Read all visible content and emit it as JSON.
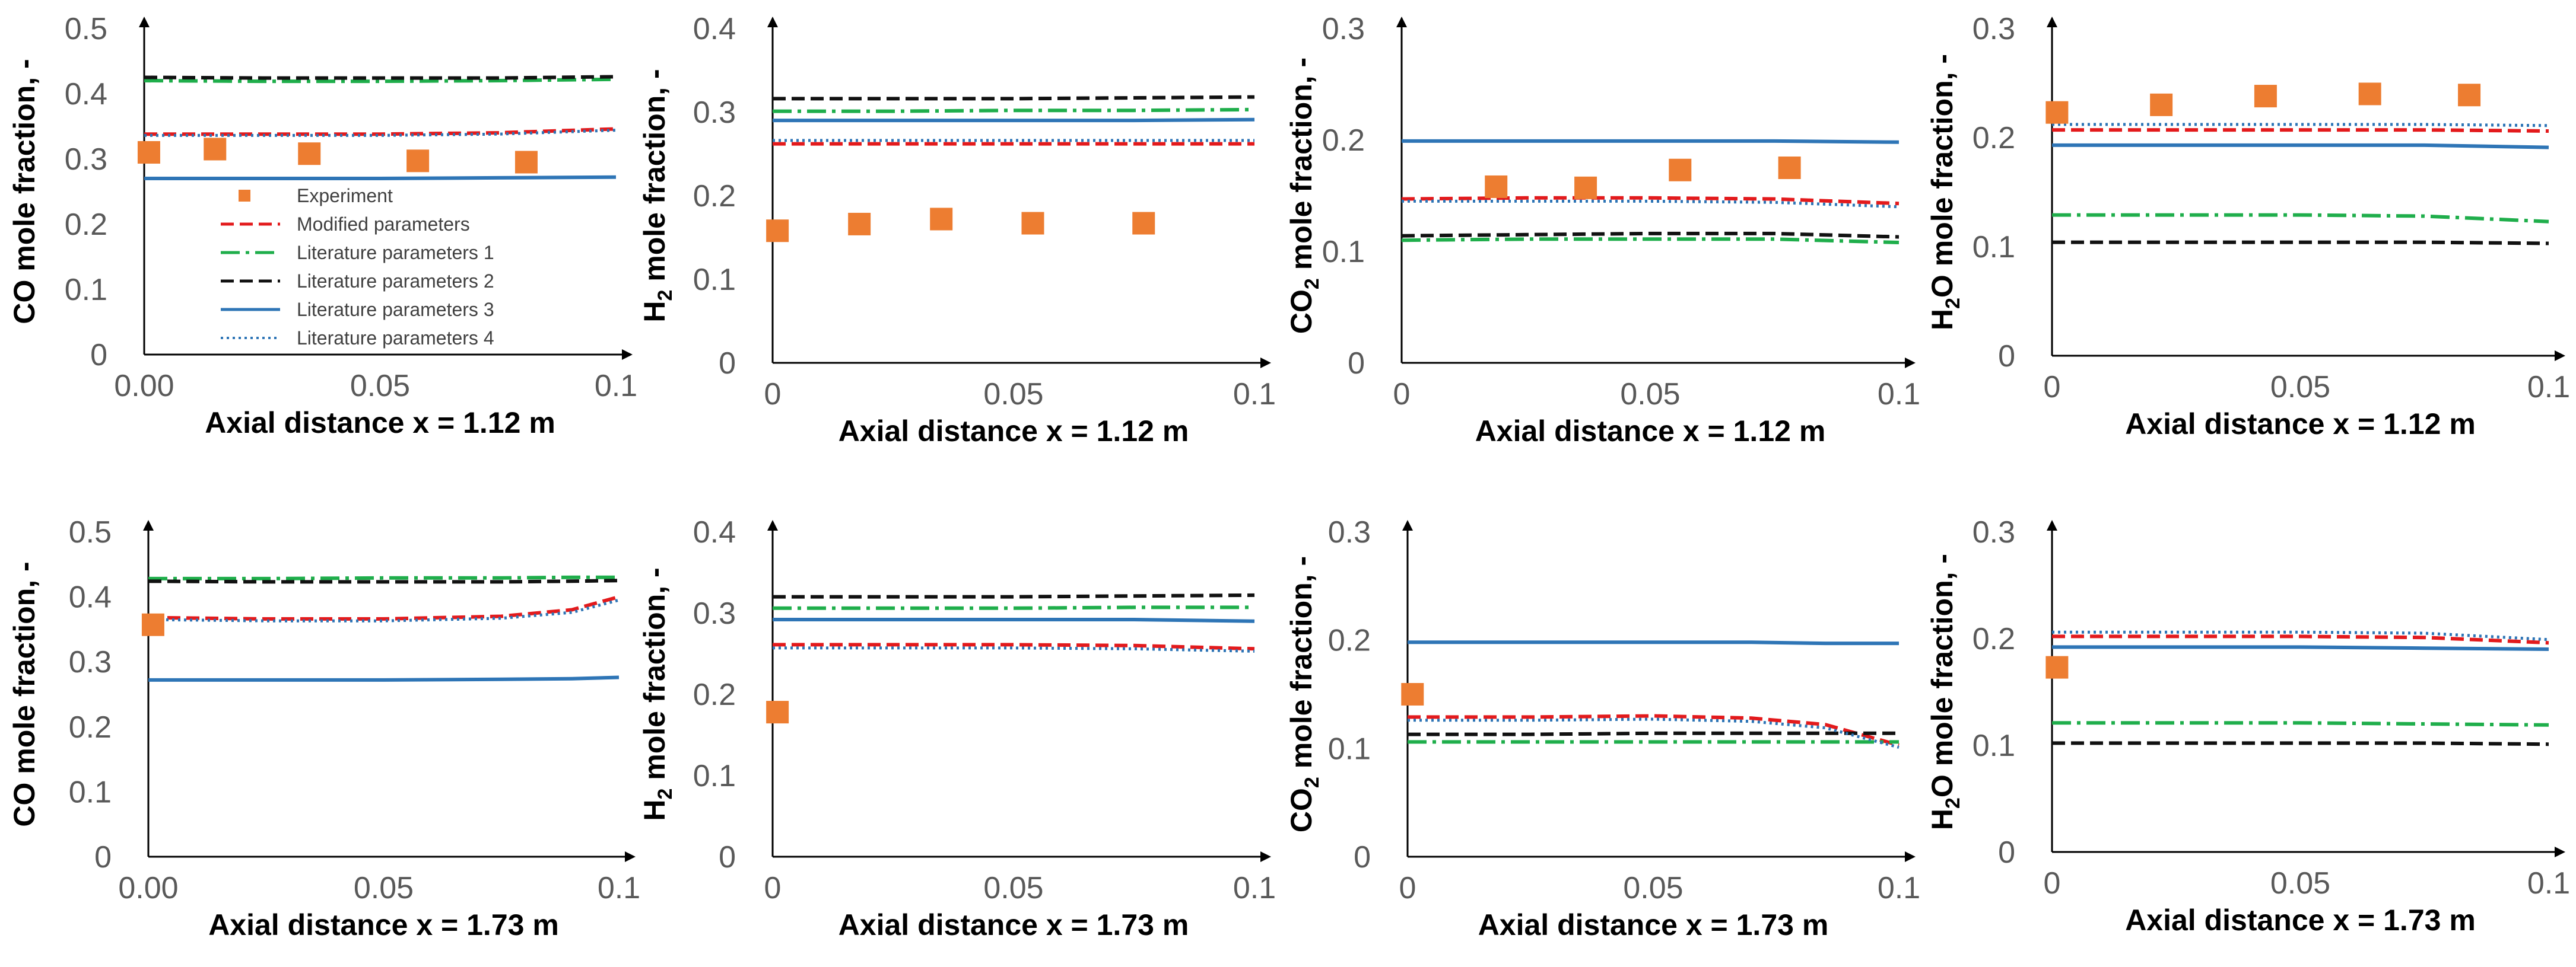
{
  "figure": {
    "description_type": "8-panel line chart grid",
    "legend": {
      "entries": [
        {
          "name": "Experiment",
          "style": "marker",
          "color": "#ED7D31"
        },
        {
          "name": "Modified parameters",
          "style": "dashed",
          "color": "#E31A1C"
        },
        {
          "name": "Literature parameters 1",
          "style": "dashdot",
          "color": "#1FAE4B"
        },
        {
          "name": "Literature parameters 2",
          "style": "dashed",
          "color": "#111111"
        },
        {
          "name": "Literature parameters 3",
          "style": "solid",
          "color": "#2E75B6"
        },
        {
          "name": "Literature parameters 4",
          "style": "dotted",
          "color": "#2E75B6"
        }
      ]
    }
  },
  "chart_data": [
    {
      "type": "line",
      "title": "",
      "xlabel": "Axial distance x = 1.12 m",
      "ylabel_main": "CO",
      "ylabel_sub": "",
      "ylabel_rest": " mole fraction, -",
      "xlim": [
        0,
        0.1
      ],
      "ylim": [
        0,
        0.5
      ],
      "xticks": [
        "0.00",
        "0.05",
        "0.1"
      ],
      "yticks": [
        "0",
        "0.1",
        "0.2",
        "0.3",
        "0.4",
        "0.5"
      ],
      "x": [
        0,
        0.025,
        0.05,
        0.075,
        0.1
      ],
      "series": [
        {
          "name": "Modified parameters",
          "values": [
            0.338,
            0.338,
            0.338,
            0.34,
            0.346
          ]
        },
        {
          "name": "Literature parameters 1",
          "values": [
            0.42,
            0.419,
            0.419,
            0.42,
            0.422
          ]
        },
        {
          "name": "Literature parameters 2",
          "values": [
            0.425,
            0.424,
            0.424,
            0.424,
            0.426
          ]
        },
        {
          "name": "Literature parameters 3",
          "values": [
            0.27,
            0.27,
            0.27,
            0.271,
            0.272
          ]
        },
        {
          "name": "Literature parameters 4",
          "values": [
            0.336,
            0.336,
            0.336,
            0.338,
            0.344
          ]
        }
      ],
      "experiment": {
        "x": [
          0.001,
          0.015,
          0.035,
          0.058,
          0.081
        ],
        "y": [
          0.31,
          0.315,
          0.308,
          0.297,
          0.295
        ]
      }
    },
    {
      "type": "line",
      "title": "",
      "xlabel": "Axial distance x = 1.12 m",
      "ylabel_main": "H",
      "ylabel_sub": "2",
      "ylabel_rest": " mole fraction, -",
      "xlim": [
        0,
        0.1
      ],
      "ylim": [
        0,
        0.4
      ],
      "xticks": [
        "0",
        "0.05",
        "0.1"
      ],
      "yticks": [
        "0",
        "0.1",
        "0.2",
        "0.3",
        "0.4"
      ],
      "x": [
        0,
        0.025,
        0.05,
        0.075,
        0.1
      ],
      "series": [
        {
          "name": "Modified parameters",
          "values": [
            0.262,
            0.262,
            0.262,
            0.262,
            0.262
          ]
        },
        {
          "name": "Literature parameters 1",
          "values": [
            0.301,
            0.301,
            0.302,
            0.302,
            0.303
          ]
        },
        {
          "name": "Literature parameters 2",
          "values": [
            0.316,
            0.316,
            0.316,
            0.317,
            0.318
          ]
        },
        {
          "name": "Literature parameters 3",
          "values": [
            0.29,
            0.29,
            0.29,
            0.29,
            0.291
          ]
        },
        {
          "name": "Literature parameters 4",
          "values": [
            0.266,
            0.266,
            0.266,
            0.266,
            0.266
          ]
        }
      ],
      "experiment": {
        "x": [
          0.001,
          0.018,
          0.035,
          0.054,
          0.077
        ],
        "y": [
          0.158,
          0.166,
          0.172,
          0.167,
          0.167
        ]
      }
    },
    {
      "type": "line",
      "title": "",
      "xlabel": "Axial distance x = 1.12 m",
      "ylabel_main": "CO",
      "ylabel_sub": "2",
      "ylabel_rest": " mole fraction, -",
      "xlim": [
        0,
        0.1
      ],
      "ylim": [
        0,
        0.3
      ],
      "xticks": [
        "0",
        "0.05",
        "0.1"
      ],
      "yticks": [
        "0",
        "0.1",
        "0.2",
        "0.3"
      ],
      "x": [
        0,
        0.025,
        0.05,
        0.075,
        0.1
      ],
      "series": [
        {
          "name": "Modified parameters",
          "values": [
            0.147,
            0.148,
            0.148,
            0.147,
            0.143
          ]
        },
        {
          "name": "Literature parameters 1",
          "values": [
            0.11,
            0.111,
            0.111,
            0.111,
            0.108
          ]
        },
        {
          "name": "Literature parameters 2",
          "values": [
            0.114,
            0.115,
            0.116,
            0.116,
            0.113
          ]
        },
        {
          "name": "Literature parameters 3",
          "values": [
            0.199,
            0.199,
            0.199,
            0.199,
            0.198
          ]
        },
        {
          "name": "Literature parameters 4",
          "values": [
            0.145,
            0.145,
            0.145,
            0.144,
            0.14
          ]
        }
      ],
      "experiment": {
        "x": [
          0.019,
          0.037,
          0.056,
          0.078
        ],
        "y": [
          0.158,
          0.157,
          0.173,
          0.175
        ]
      }
    },
    {
      "type": "line",
      "title": "",
      "xlabel": "Axial distance x = 1.12 m",
      "ylabel_main": "H",
      "ylabel_sub": "2",
      "ylabel_rest": "O mole fraction, -",
      "xlim": [
        0,
        0.1
      ],
      "ylim": [
        0,
        0.3
      ],
      "xticks": [
        "0",
        "0.05",
        "0.1"
      ],
      "yticks": [
        "0",
        "0.1",
        "0.2",
        "0.3"
      ],
      "x": [
        0,
        0.025,
        0.05,
        0.075,
        0.1
      ],
      "series": [
        {
          "name": "Modified parameters",
          "values": [
            0.207,
            0.207,
            0.207,
            0.207,
            0.206
          ]
        },
        {
          "name": "Literature parameters 1",
          "values": [
            0.129,
            0.129,
            0.129,
            0.128,
            0.123
          ]
        },
        {
          "name": "Literature parameters 2",
          "values": [
            0.104,
            0.104,
            0.104,
            0.104,
            0.103
          ]
        },
        {
          "name": "Literature parameters 3",
          "values": [
            0.193,
            0.193,
            0.193,
            0.193,
            0.191
          ]
        },
        {
          "name": "Literature parameters 4",
          "values": [
            0.212,
            0.212,
            0.212,
            0.212,
            0.211
          ]
        }
      ],
      "experiment": {
        "x": [
          0.001,
          0.022,
          0.043,
          0.064,
          0.084
        ],
        "y": [
          0.223,
          0.23,
          0.238,
          0.24,
          0.239
        ]
      }
    },
    {
      "type": "line",
      "title": "",
      "xlabel": "Axial distance x = 1.73 m",
      "ylabel_main": "CO",
      "ylabel_sub": "",
      "ylabel_rest": " mole fraction, -",
      "xlim": [
        0,
        0.1
      ],
      "ylim": [
        0,
        0.5
      ],
      "xticks": [
        "0.00",
        "0.05",
        "0.1"
      ],
      "yticks": [
        "0",
        "0.1",
        "0.2",
        "0.3",
        "0.4",
        "0.5"
      ],
      "x": [
        0,
        0.025,
        0.05,
        0.075,
        0.09,
        0.1
      ],
      "series": [
        {
          "name": "Modified parameters",
          "values": [
            0.368,
            0.366,
            0.366,
            0.37,
            0.38,
            0.4
          ]
        },
        {
          "name": "Literature parameters 1",
          "values": [
            0.428,
            0.428,
            0.429,
            0.429,
            0.43,
            0.43
          ]
        },
        {
          "name": "Literature parameters 2",
          "values": [
            0.424,
            0.423,
            0.423,
            0.423,
            0.424,
            0.425
          ]
        },
        {
          "name": "Literature parameters 3",
          "values": [
            0.272,
            0.272,
            0.272,
            0.273,
            0.274,
            0.276
          ]
        },
        {
          "name": "Literature parameters 4",
          "values": [
            0.365,
            0.363,
            0.363,
            0.367,
            0.376,
            0.395
          ]
        }
      ],
      "experiment": {
        "x": [
          0.001
        ],
        "y": [
          0.357
        ]
      }
    },
    {
      "type": "line",
      "title": "",
      "xlabel": "Axial distance x = 1.73 m",
      "ylabel_main": "H",
      "ylabel_sub": "2",
      "ylabel_rest": " mole fraction, -",
      "xlim": [
        0,
        0.1
      ],
      "ylim": [
        0,
        0.4
      ],
      "xticks": [
        "0",
        "0.05",
        "0.1"
      ],
      "yticks": [
        "0",
        "0.1",
        "0.2",
        "0.3",
        "0.4"
      ],
      "x": [
        0,
        0.025,
        0.05,
        0.075,
        0.1
      ],
      "series": [
        {
          "name": "Modified parameters",
          "values": [
            0.261,
            0.261,
            0.261,
            0.26,
            0.256
          ]
        },
        {
          "name": "Literature parameters 1",
          "values": [
            0.306,
            0.306,
            0.306,
            0.307,
            0.307
          ]
        },
        {
          "name": "Literature parameters 2",
          "values": [
            0.32,
            0.32,
            0.32,
            0.321,
            0.322
          ]
        },
        {
          "name": "Literature parameters 3",
          "values": [
            0.292,
            0.292,
            0.292,
            0.292,
            0.29
          ]
        },
        {
          "name": "Literature parameters 4",
          "values": [
            0.257,
            0.257,
            0.257,
            0.256,
            0.253
          ]
        }
      ],
      "experiment": {
        "x": [
          0.001
        ],
        "y": [
          0.178
        ]
      }
    },
    {
      "type": "line",
      "title": "",
      "xlabel": "Axial distance x = 1.73 m",
      "ylabel_main": "CO",
      "ylabel_sub": "2",
      "ylabel_rest": " mole fraction, -",
      "xlim": [
        0,
        0.1
      ],
      "ylim": [
        0,
        0.3
      ],
      "xticks": [
        "0",
        "0.05",
        "0.1"
      ],
      "yticks": [
        "0",
        "0.1",
        "0.2",
        "0.3"
      ],
      "x": [
        0,
        0.025,
        0.05,
        0.07,
        0.085,
        0.1
      ],
      "series": [
        {
          "name": "Modified parameters",
          "values": [
            0.129,
            0.129,
            0.13,
            0.128,
            0.122,
            0.103
          ]
        },
        {
          "name": "Literature parameters 1",
          "values": [
            0.106,
            0.106,
            0.106,
            0.106,
            0.106,
            0.106
          ]
        },
        {
          "name": "Literature parameters 2",
          "values": [
            0.113,
            0.113,
            0.114,
            0.114,
            0.114,
            0.114
          ]
        },
        {
          "name": "Literature parameters 3",
          "values": [
            0.198,
            0.198,
            0.198,
            0.198,
            0.197,
            0.197
          ]
        },
        {
          "name": "Literature parameters 4",
          "values": [
            0.126,
            0.126,
            0.127,
            0.125,
            0.119,
            0.101
          ]
        }
      ],
      "experiment": {
        "x": [
          0.001
        ],
        "y": [
          0.15
        ]
      }
    },
    {
      "type": "line",
      "title": "",
      "xlabel": "Axial distance x = 1.73 m",
      "ylabel_main": "H",
      "ylabel_sub": "2",
      "ylabel_rest": "O mole fraction, -",
      "xlim": [
        0,
        0.1
      ],
      "ylim": [
        0,
        0.3
      ],
      "xticks": [
        "0",
        "0.05",
        "0.1"
      ],
      "yticks": [
        "0",
        "0.1",
        "0.2",
        "0.3"
      ],
      "x": [
        0,
        0.025,
        0.05,
        0.075,
        0.1
      ],
      "series": [
        {
          "name": "Modified parameters",
          "values": [
            0.202,
            0.202,
            0.202,
            0.201,
            0.196
          ]
        },
        {
          "name": "Literature parameters 1",
          "values": [
            0.121,
            0.121,
            0.121,
            0.12,
            0.119
          ]
        },
        {
          "name": "Literature parameters 2",
          "values": [
            0.102,
            0.102,
            0.102,
            0.102,
            0.101
          ]
        },
        {
          "name": "Literature parameters 3",
          "values": [
            0.192,
            0.192,
            0.192,
            0.191,
            0.19
          ]
        },
        {
          "name": "Literature parameters 4",
          "values": [
            0.206,
            0.206,
            0.206,
            0.205,
            0.199
          ]
        }
      ],
      "experiment": {
        "x": [
          0.001
        ],
        "y": [
          0.173
        ]
      }
    }
  ]
}
